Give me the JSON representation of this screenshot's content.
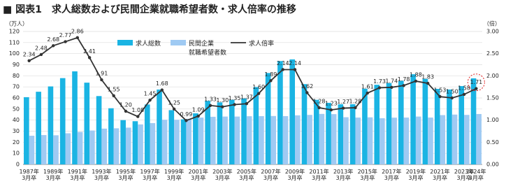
{
  "chart_data": {
    "type": "bar-line",
    "title": "■ 図表1　求人総数および民間企業就職希望者数・求人倍率の推移",
    "y_label": "（万人）",
    "y2_label": "（倍）",
    "categories": [
      "1987年\n3月卒",
      null,
      "1989年\n3月卒",
      null,
      "1991年\n3月卒",
      null,
      "1993年\n3月卒",
      null,
      "1995年\n3月卒",
      null,
      "1997年\n3月卒",
      null,
      "1999年\n3月卒",
      null,
      "2001年\n3月卒",
      null,
      "2003年\n3月卒",
      null,
      "2005年\n3月卒",
      null,
      "2007年\n3月卒",
      null,
      "2009年\n3月卒",
      null,
      "2011年\n3月卒",
      null,
      "2013年\n3月卒",
      null,
      "2015年\n3月卒",
      null,
      "2017年\n3月卒",
      null,
      "2019年\n3月卒",
      null,
      "2021年\n3月卒",
      null,
      "2023年\n3月卒",
      "2024年\n3月卒"
    ],
    "series": [
      {
        "name": "求人総数",
        "type": "bar",
        "color": "#1ab4e3",
        "values": [
          60.7,
          65.6,
          70.4,
          77.9,
          84.0,
          73.8,
          61.7,
          50.7,
          40.0,
          39.0,
          54.1,
          67.6,
          49.0,
          40.7,
          46.1,
          57.3,
          56.0,
          58.3,
          59.6,
          69.8,
          82.5,
          93.3,
          94.8,
          72.5,
          58.3,
          55.6,
          54.3,
          54.3,
          68.3,
          71.9,
          73.4,
          75.5,
          81.4,
          77.2,
          68.2,
          67.6,
          70.7,
          77.7
        ]
      },
      {
        "name": "民間企業\n就職希望者数",
        "type": "bar",
        "color": "#9fcaf3",
        "values": [
          25.9,
          26.5,
          26.3,
          28.1,
          29.3,
          30.6,
          32.3,
          32.6,
          33.2,
          36.1,
          37.3,
          40.3,
          40.3,
          41.2,
          42.3,
          43.0,
          43.2,
          43.2,
          43.5,
          43.6,
          43.7,
          43.6,
          44.3,
          44.7,
          45.6,
          45.4,
          42.6,
          42.3,
          42.5,
          41.7,
          42.2,
          42.3,
          43.2,
          42.3,
          44.5,
          45.0,
          44.7,
          45.5
        ]
      },
      {
        "name": "求人倍率",
        "type": "line",
        "axis": "y2",
        "color": "#333333",
        "values": [
          2.34,
          2.48,
          2.68,
          2.77,
          2.86,
          2.41,
          1.91,
          1.55,
          1.2,
          1.08,
          1.45,
          1.68,
          1.25,
          0.99,
          1.09,
          1.33,
          1.3,
          1.35,
          1.37,
          1.6,
          1.89,
          2.14,
          2.14,
          1.62,
          1.28,
          1.23,
          1.27,
          1.28,
          1.61,
          1.73,
          1.74,
          1.78,
          1.88,
          1.83,
          1.53,
          1.5,
          1.58,
          1.71
        ],
        "value_labels": [
          "2.34",
          "2.48",
          "2.68",
          "2.77",
          "2.86",
          "2.41",
          "1.91",
          "1.55",
          "1.20",
          "1.08",
          "1.45",
          "1.68",
          "1.25",
          "0.99",
          "1.09",
          "1.33",
          "1.30",
          "1.35",
          "1.37",
          "1.60",
          "1.89",
          "2.14",
          "2.14",
          "1.62",
          "1.28",
          "1.23",
          "1.27",
          "1.28",
          "1.61",
          "1.73",
          "1.74",
          "1.78",
          "1.88",
          "1.83",
          "1.53",
          "1.50",
          "1.58",
          "1.71"
        ]
      }
    ],
    "ylim": [
      0,
      120
    ],
    "yticks": [
      0,
      10,
      20,
      30,
      40,
      50,
      60,
      70,
      80,
      90,
      100,
      110,
      120
    ],
    "y2lim": [
      0,
      3
    ],
    "y2ticks": [
      {
        "value": 0,
        "label": "0.00"
      },
      {
        "value": 0.5,
        "label": "0.50"
      },
      {
        "value": 1,
        "label": "1.00"
      },
      {
        "value": 1.5,
        "label": "1.50"
      },
      {
        "value": 2,
        "label": "2.00"
      },
      {
        "value": 2.5,
        "label": "2.50"
      },
      {
        "value": 3,
        "label": "3.00"
      }
    ],
    "grid": true
  }
}
